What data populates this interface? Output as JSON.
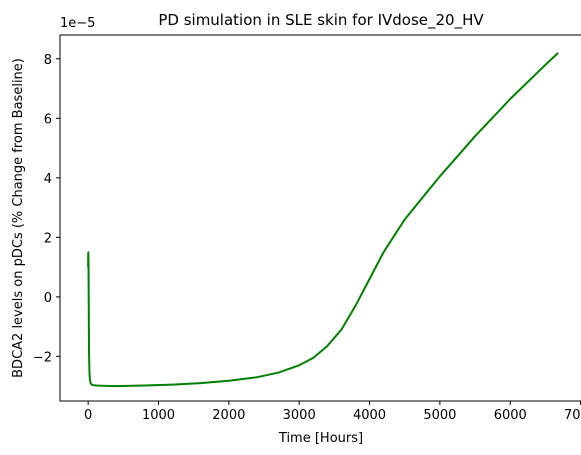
{
  "chart_data": {
    "type": "line",
    "title": "PD simulation in SLE skin for IVdose_20_HV",
    "xlabel": "Time [Hours]",
    "ylabel": "BDCA2 levels on pDCs (% Change from Baseline)",
    "y_offset_text": "1e−5",
    "xlim": [
      -400,
      7020
    ],
    "ylim": [
      -3.5,
      8.8
    ],
    "y_multiplier": 1e-05,
    "grid": false,
    "legend": "none",
    "x_ticks": [
      0,
      1000,
      2000,
      3000,
      4000,
      5000,
      6000,
      7000
    ],
    "x_tick_labels": [
      "0",
      "1000",
      "2000",
      "3000",
      "4000",
      "5000",
      "6000",
      "7000"
    ],
    "y_ticks": [
      -2,
      0,
      2,
      4,
      6,
      8
    ],
    "y_tick_labels": [
      "−2",
      "0",
      "2",
      "4",
      "6",
      "8"
    ],
    "series": [
      {
        "color": "#008000",
        "x": [
          0,
          2,
          5,
          8,
          12,
          18,
          25,
          35,
          50,
          80,
          120,
          200,
          400,
          800,
          1200,
          1600,
          2000,
          2400,
          2700,
          3000,
          3200,
          3400,
          3600,
          3800,
          4000,
          4200,
          4500,
          5000,
          5500,
          6000,
          6500,
          6680
        ],
        "y": [
          1.0,
          1.5,
          1.2,
          0.0,
          -1.8,
          -2.5,
          -2.8,
          -2.9,
          -2.95,
          -2.97,
          -2.98,
          -2.99,
          -3.0,
          -2.98,
          -2.95,
          -2.9,
          -2.82,
          -2.7,
          -2.55,
          -2.3,
          -2.05,
          -1.65,
          -1.1,
          -0.3,
          0.6,
          1.5,
          2.6,
          4.05,
          5.4,
          6.65,
          7.8,
          8.2
        ]
      }
    ]
  }
}
